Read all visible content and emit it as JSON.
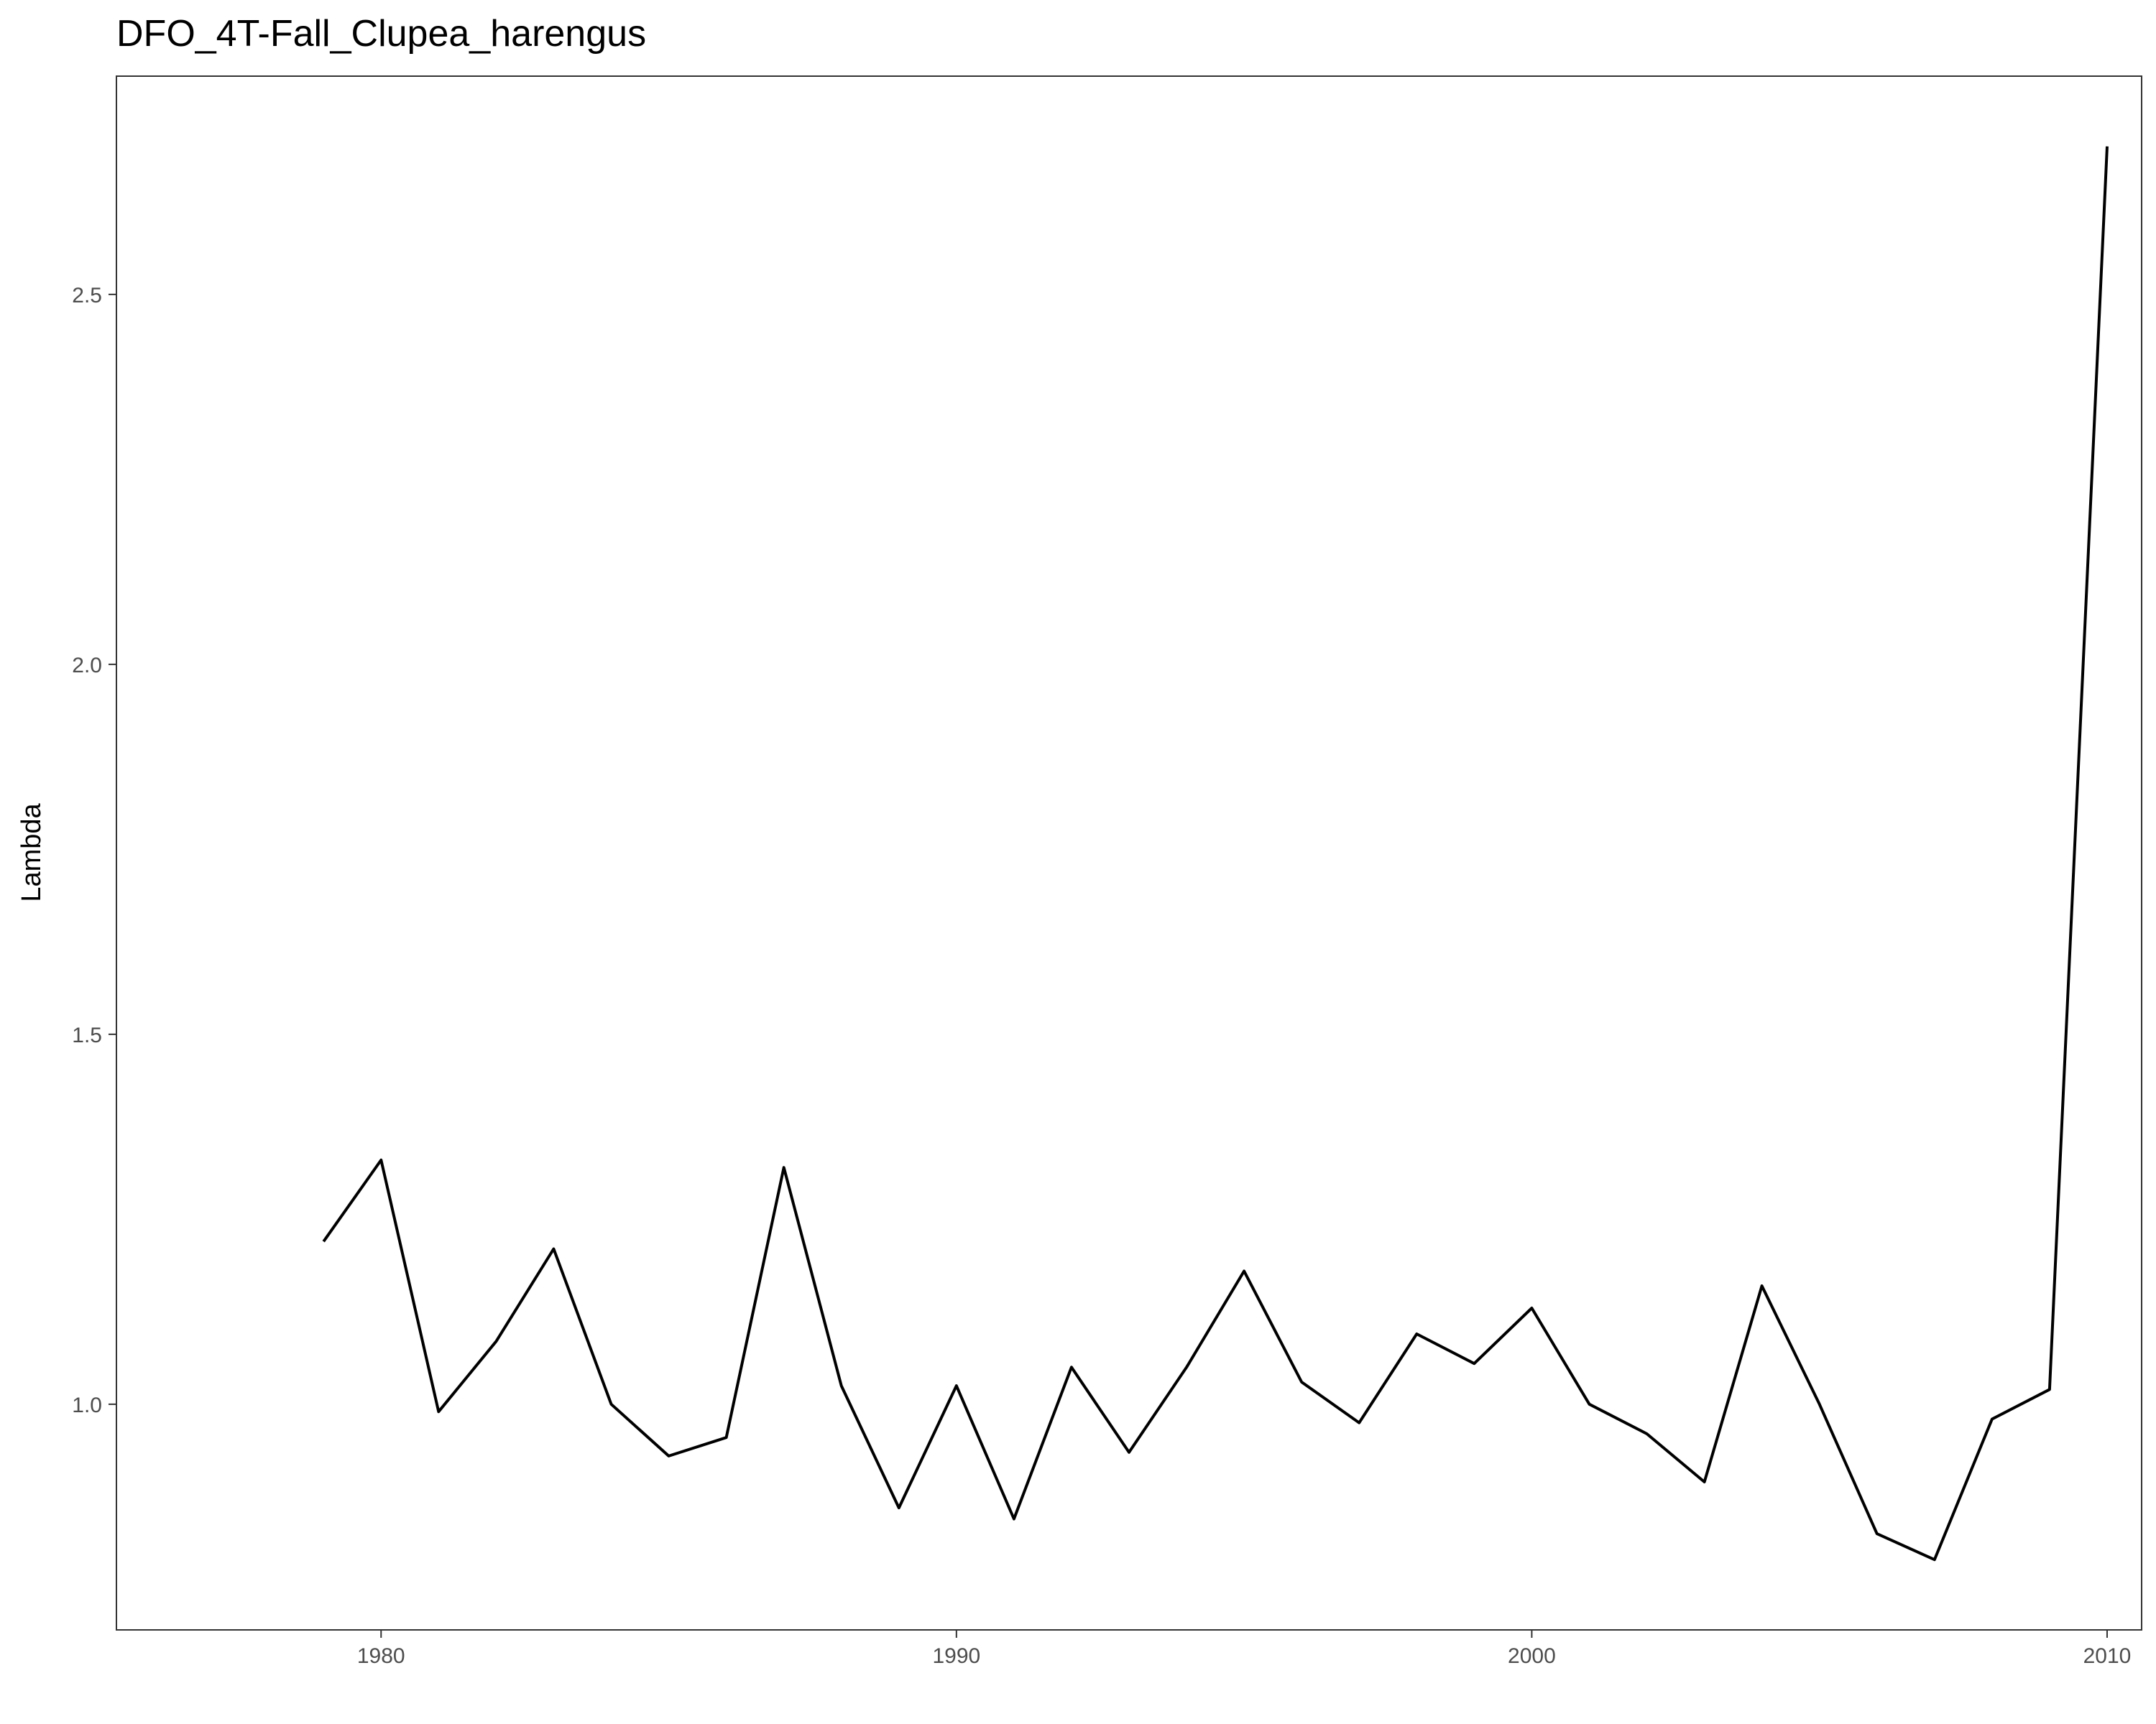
{
  "chart_data": {
    "type": "line",
    "title": "DFO_4T-Fall_Clupea_harengus",
    "xlabel": "",
    "ylabel": "Lambda",
    "xlim": [
      1975.4,
      2010.6
    ],
    "ylim": [
      0.695,
      2.795
    ],
    "xticks": [
      1980,
      1990,
      2000,
      2010
    ],
    "yticks": [
      1.0,
      1.5,
      2.0,
      2.5
    ],
    "ytick_labels": [
      "1.0",
      "1.5",
      "2.0",
      "2.5"
    ],
    "grid": false,
    "legend": "none",
    "line_color": "#000000",
    "series": [
      {
        "x": [
          1979,
          1980,
          1981,
          1982,
          1983,
          1984,
          1985,
          1986,
          1987,
          1988,
          1989,
          1990,
          1991,
          1992,
          1993,
          1994,
          1995,
          1996,
          1997,
          1998,
          1999,
          2000,
          2001,
          2002,
          2003,
          2004,
          2005,
          2006,
          2007,
          2008,
          2009,
          2010
        ],
        "values": [
          1.22,
          1.33,
          0.99,
          1.085,
          1.21,
          1.0,
          0.93,
          0.955,
          1.32,
          1.025,
          0.86,
          1.025,
          0.845,
          1.05,
          0.935,
          1.05,
          1.18,
          1.03,
          0.975,
          1.095,
          1.055,
          1.13,
          1.0,
          0.96,
          0.895,
          1.16,
          1.0,
          0.825,
          0.79,
          0.98,
          1.02,
          2.7
        ]
      }
    ]
  }
}
